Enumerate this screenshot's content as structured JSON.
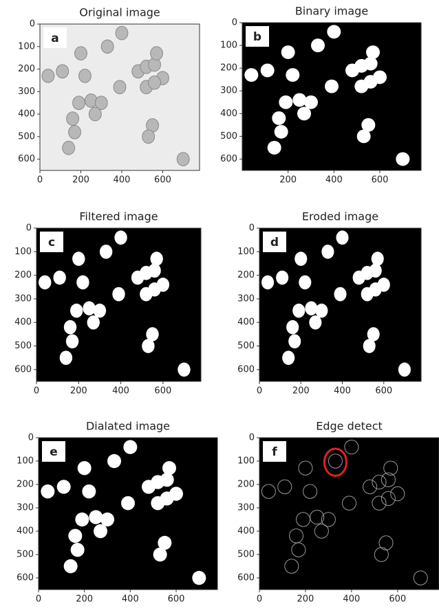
{
  "panels": [
    {
      "title": "Original image",
      "label": "a",
      "style": "original",
      "xlim": [
        0,
        780
      ],
      "ylim": [
        650,
        0
      ],
      "xticks": [
        0,
        200,
        400,
        600
      ],
      "yticks": [
        0,
        100,
        200,
        300,
        400,
        500,
        600
      ]
    },
    {
      "title": "Binary image",
      "label": "b",
      "style": "binary",
      "xlim": [
        0,
        780
      ],
      "ylim": [
        650,
        0
      ],
      "xticks": [
        200,
        400,
        600
      ],
      "yticks": [
        0,
        100,
        200,
        300,
        400,
        500,
        600
      ]
    },
    {
      "title": "Filtered image",
      "label": "c",
      "style": "binary",
      "xlim": [
        0,
        780
      ],
      "ylim": [
        650,
        0
      ],
      "xticks": [
        0,
        200,
        400,
        600
      ],
      "yticks": [
        0,
        100,
        200,
        300,
        400,
        500,
        600
      ]
    },
    {
      "title": "Eroded image",
      "label": "d",
      "style": "binary",
      "xlim": [
        0,
        780
      ],
      "ylim": [
        650,
        0
      ],
      "xticks": [
        0,
        200,
        400,
        600
      ],
      "yticks": [
        0,
        100,
        200,
        300,
        400,
        500,
        600
      ]
    },
    {
      "title": "Dialated image",
      "label": "e",
      "style": "binary",
      "xlim": [
        0,
        780
      ],
      "ylim": [
        650,
        0
      ],
      "xticks": [
        0,
        200,
        400,
        600
      ],
      "yticks": [
        0,
        100,
        200,
        300,
        400,
        500,
        600
      ]
    },
    {
      "title": "Edge detect",
      "label": "f",
      "style": "edge",
      "xlim": [
        0,
        780
      ],
      "ylim": [
        650,
        0
      ],
      "xticks": [
        0,
        200,
        400,
        600
      ],
      "yticks": [
        0,
        100,
        200,
        300,
        400,
        500,
        600
      ]
    }
  ]
}
